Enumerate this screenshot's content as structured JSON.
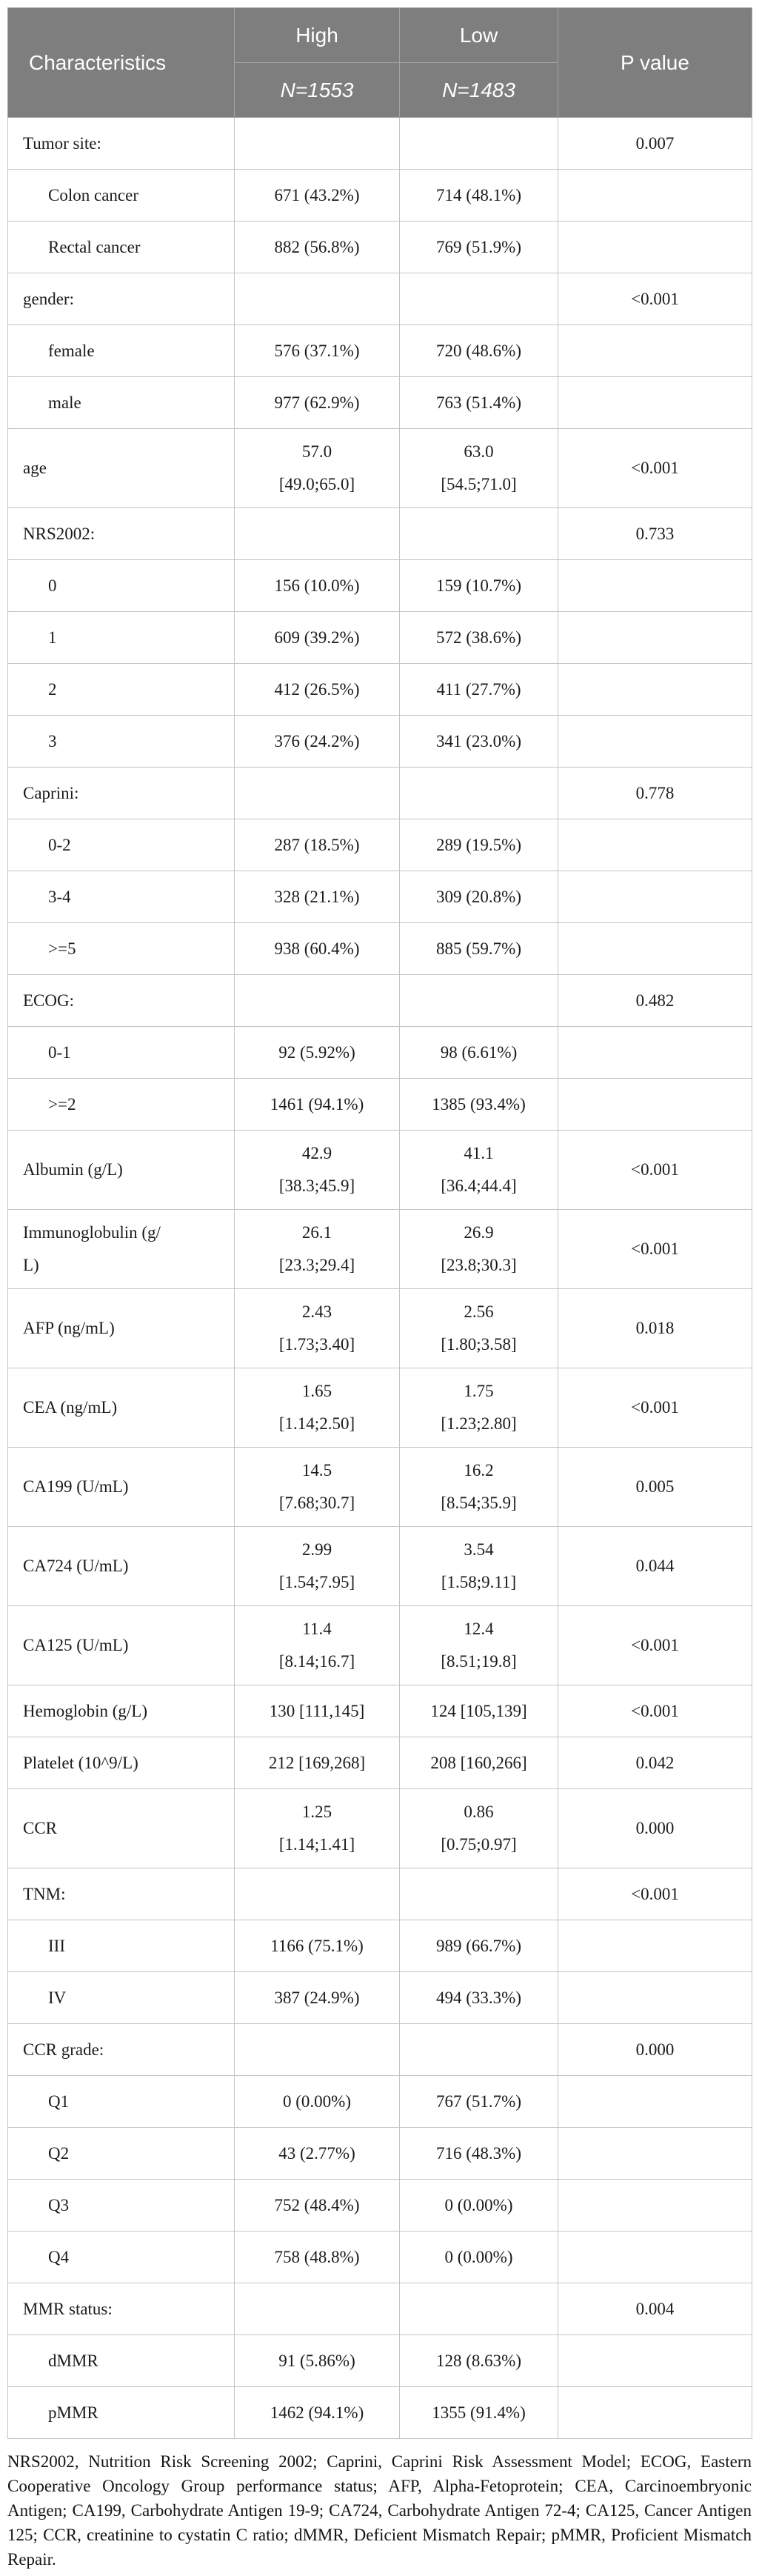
{
  "colors": {
    "header_bg": "#7e7e7e",
    "header_text": "#ffffff",
    "header_border": "#a3a3a3",
    "body_border": "#c4c4c4",
    "body_text": "#1b1b1b"
  },
  "table": {
    "header": {
      "characteristics": "Characteristics",
      "high": {
        "label": "High",
        "n": "N=1553"
      },
      "low": {
        "label": "Low",
        "n": "N=1483"
      },
      "p_value": "P value"
    },
    "rows": [
      {
        "label": "Tumor site:",
        "indent": "group",
        "high": "",
        "low": "",
        "p": "0.007"
      },
      {
        "label": "Colon cancer",
        "indent": "sub",
        "high": "671 (43.2%)",
        "low": "714 (48.1%)",
        "p": ""
      },
      {
        "label": "Rectal cancer",
        "indent": "sub",
        "high": "882 (56.8%)",
        "low": "769 (51.9%)",
        "p": ""
      },
      {
        "label": "gender:",
        "indent": "group",
        "high": "",
        "low": "",
        "p": "<0.001"
      },
      {
        "label": "female",
        "indent": "sub",
        "high": "576 (37.1%)",
        "low": "720 (48.6%)",
        "p": ""
      },
      {
        "label": "male",
        "indent": "sub",
        "high": "977 (62.9%)",
        "low": "763 (51.4%)",
        "p": ""
      },
      {
        "label": "age",
        "indent": "group",
        "tall": true,
        "high": "57.0\n[49.0;65.0]",
        "low": "63.0\n[54.5;71.0]",
        "p": "<0.001"
      },
      {
        "label": "NRS2002:",
        "indent": "group",
        "high": "",
        "low": "",
        "p": "0.733"
      },
      {
        "label": "0",
        "indent": "sub",
        "high": "156 (10.0%)",
        "low": "159 (10.7%)",
        "p": ""
      },
      {
        "label": "1",
        "indent": "sub",
        "high": "609 (39.2%)",
        "low": "572 (38.6%)",
        "p": ""
      },
      {
        "label": "2",
        "indent": "sub",
        "high": "412 (26.5%)",
        "low": "411 (27.7%)",
        "p": ""
      },
      {
        "label": "3",
        "indent": "sub",
        "high": "376 (24.2%)",
        "low": "341 (23.0%)",
        "p": ""
      },
      {
        "label": "Caprini:",
        "indent": "group",
        "high": "",
        "low": "",
        "p": "0.778"
      },
      {
        "label": "0-2",
        "indent": "sub",
        "high": "287 (18.5%)",
        "low": "289 (19.5%)",
        "p": ""
      },
      {
        "label": "3-4",
        "indent": "sub",
        "high": "328 (21.1%)",
        "low": "309 (20.8%)",
        "p": ""
      },
      {
        "label": ">=5",
        "indent": "sub",
        "high": "938 (60.4%)",
        "low": "885 (59.7%)",
        "p": ""
      },
      {
        "label": "ECOG:",
        "indent": "group",
        "high": "",
        "low": "",
        "p": "0.482"
      },
      {
        "label": "0-1",
        "indent": "sub",
        "high": "92 (5.92%)",
        "low": "98 (6.61%)",
        "p": ""
      },
      {
        "label": ">=2",
        "indent": "sub",
        "high": "1461 (94.1%)",
        "low": "1385 (93.4%)",
        "p": ""
      },
      {
        "label": "Albumin (g/L)",
        "indent": "group",
        "tall": true,
        "high": "42.9\n[38.3;45.9]",
        "low": "41.1\n[36.4;44.4]",
        "p": "<0.001"
      },
      {
        "label": "Immunoglobulin (g/\nL)",
        "indent": "group",
        "tall": true,
        "high": "26.1\n[23.3;29.4]",
        "low": "26.9\n[23.8;30.3]",
        "p": "<0.001"
      },
      {
        "label": "AFP (ng/mL)",
        "indent": "group",
        "tall": true,
        "high": "2.43\n[1.73;3.40]",
        "low": "2.56\n[1.80;3.58]",
        "p": "0.018"
      },
      {
        "label": "CEA (ng/mL)",
        "indent": "group",
        "tall": true,
        "high": "1.65\n[1.14;2.50]",
        "low": "1.75\n[1.23;2.80]",
        "p": "<0.001"
      },
      {
        "label": "CA199 (U/mL)",
        "indent": "group",
        "tall": true,
        "high": "14.5\n[7.68;30.7]",
        "low": "16.2\n[8.54;35.9]",
        "p": "0.005"
      },
      {
        "label": "CA724 (U/mL)",
        "indent": "group",
        "tall": true,
        "high": "2.99\n[1.54;7.95]",
        "low": "3.54\n[1.58;9.11]",
        "p": "0.044"
      },
      {
        "label": "CA125 (U/mL)",
        "indent": "group",
        "tall": true,
        "high": "11.4\n[8.14;16.7]",
        "low": "12.4\n[8.51;19.8]",
        "p": "<0.001"
      },
      {
        "label": "Hemoglobin (g/L)",
        "indent": "group",
        "high": "130 [111,145]",
        "low": "124 [105,139]",
        "p": "<0.001"
      },
      {
        "label": "Platelet (10^9/L)",
        "indent": "group",
        "high": "212 [169,268]",
        "low": "208 [160,266]",
        "p": "0.042"
      },
      {
        "label": "CCR",
        "indent": "group",
        "tall": true,
        "high": "1.25\n[1.14;1.41]",
        "low": "0.86\n[0.75;0.97]",
        "p": "0.000"
      },
      {
        "label": "TNM:",
        "indent": "group",
        "high": "",
        "low": "",
        "p": "<0.001"
      },
      {
        "label": "III",
        "indent": "sub",
        "high": "1166 (75.1%)",
        "low": "989 (66.7%)",
        "p": ""
      },
      {
        "label": "IV",
        "indent": "sub",
        "high": "387 (24.9%)",
        "low": "494 (33.3%)",
        "p": ""
      },
      {
        "label": "CCR grade:",
        "indent": "group",
        "high": "",
        "low": "",
        "p": "0.000"
      },
      {
        "label": "Q1",
        "indent": "sub",
        "high": "0 (0.00%)",
        "low": "767 (51.7%)",
        "p": ""
      },
      {
        "label": "Q2",
        "indent": "sub",
        "high": "43 (2.77%)",
        "low": "716 (48.3%)",
        "p": ""
      },
      {
        "label": "Q3",
        "indent": "sub",
        "high": "752 (48.4%)",
        "low": "0 (0.00%)",
        "p": ""
      },
      {
        "label": "Q4",
        "indent": "sub",
        "high": "758 (48.8%)",
        "low": "0 (0.00%)",
        "p": ""
      },
      {
        "label": "MMR status:",
        "indent": "group",
        "high": "",
        "low": "",
        "p": "0.004"
      },
      {
        "label": "dMMR",
        "indent": "sub",
        "high": "91 (5.86%)",
        "low": "128 (8.63%)",
        "p": ""
      },
      {
        "label": "pMMR",
        "indent": "sub",
        "high": "1462 (94.1%)",
        "low": "1355 (91.4%)",
        "p": ""
      }
    ],
    "footnote": "NRS2002, Nutrition Risk Screening 2002; Caprini, Caprini Risk Assessment Model; ECOG, Eastern Cooperative Oncology Group performance status; AFP, Alpha-Fetoprotein; CEA, Carcinoembryonic Antigen; CA199, Carbohydrate Antigen 19-9; CA724, Carbohydrate Antigen 72-4; CA125, Cancer Antigen 125; CCR, creatinine to cystatin C ratio; dMMR, Deficient Mismatch Repair; pMMR, Proficient Mismatch Repair."
  }
}
